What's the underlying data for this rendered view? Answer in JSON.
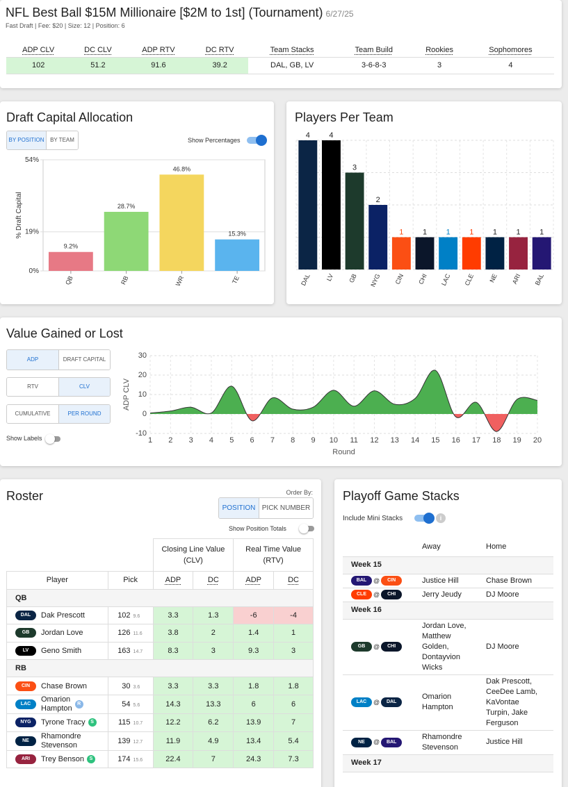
{
  "header": {
    "title": "NFL Best Ball $15M Millionaire [$2M to 1st] (Tournament)",
    "date": "6/27/25",
    "subtitle": "Fast Draft | Fee: $20 | Size: 12 | Position: 6",
    "columns": [
      "ADP CLV",
      "DC CLV",
      "ADP RTV",
      "DC RTV",
      "Team Stacks",
      "Team Build",
      "Rookies",
      "Sophomores"
    ],
    "values": [
      "102",
      "51.2",
      "91.6",
      "39.2",
      "DAL, GB, LV",
      "3-6-8-3",
      "3",
      "4"
    ]
  },
  "draft_capital": {
    "title": "Draft Capital Allocation",
    "tabs": [
      "BY POSITION",
      "BY TEAM"
    ],
    "show_percentages_label": "Show Percentages",
    "chart_data": {
      "type": "bar",
      "ylabel": "% Draft Capital",
      "yticks": [
        "54%",
        "19%",
        "0%"
      ],
      "ytick_values": [
        54,
        19,
        0
      ],
      "ylim": [
        0,
        54
      ],
      "categories": [
        "QB",
        "RB",
        "WR",
        "TE"
      ],
      "values": [
        9.2,
        28.7,
        46.8,
        15.3
      ],
      "labels": [
        "9.2%",
        "28.7%",
        "46.8%",
        "15.3%"
      ],
      "colors": [
        "#e77985",
        "#8ed876",
        "#f4d65e",
        "#5ab4ee"
      ]
    }
  },
  "players_per_team": {
    "title": "Players Per Team",
    "chart_data": {
      "type": "bar",
      "categories": [
        "DAL",
        "LV",
        "GB",
        "NYG",
        "CIN",
        "CHI",
        "LAC",
        "CLE",
        "NE",
        "ARI",
        "BAL"
      ],
      "values": [
        4,
        4,
        3,
        2,
        1,
        1,
        1,
        1,
        1,
        1,
        1
      ],
      "colors": [
        "#0b2545",
        "#000000",
        "#1d3a2c",
        "#0b2265",
        "#fb4f14",
        "#0b162a",
        "#0080c6",
        "#ff3c00",
        "#002244",
        "#97233f",
        "#241773"
      ],
      "label_colors": [
        "#222",
        "#222",
        "#222",
        "#222",
        "#fb4f14",
        "#222",
        "#0080c6",
        "#ff3c00",
        "#222",
        "#222",
        "#222"
      ],
      "ylim": [
        0,
        4
      ]
    }
  },
  "value_gained": {
    "title": "Value Gained or Lost",
    "buttons": {
      "adp": "ADP",
      "draft_capital": "DRAFT CAPITAL",
      "rtv": "RTV",
      "clv": "CLV",
      "cumulative": "CUMULATIVE",
      "per_round": "PER ROUND"
    },
    "show_labels": "Show Labels",
    "chart_data": {
      "type": "area",
      "xlabel": "Round",
      "ylabel": "ADP CLV",
      "ylim": [
        -10,
        30
      ],
      "yticks": [
        30,
        20,
        10,
        0,
        -10
      ],
      "x": [
        1,
        2,
        3,
        4,
        5,
        6,
        7,
        8,
        9,
        10,
        11,
        12,
        13,
        14,
        15,
        16,
        17,
        18,
        19,
        20
      ],
      "values": [
        0.5,
        1.5,
        3.5,
        0.5,
        14.3,
        -3.5,
        8.3,
        2.5,
        3.5,
        12.2,
        4,
        11.9,
        5,
        8,
        22.4,
        -1.5,
        6,
        -9,
        7.5,
        7
      ],
      "positive_color": "#4caf50",
      "negative_color": "#f06060"
    }
  },
  "roster": {
    "title": "Roster",
    "order_by_label": "Order By:",
    "order_buttons": [
      "POSITION",
      "PICK NUMBER"
    ],
    "show_position_totals": "Show Position Totals",
    "group_headers": [
      "Closing Line Value\n(CLV)",
      "Real Time Value\n(RTV)"
    ],
    "clv_line1": "Closing Line Value",
    "clv_line2": "(CLV)",
    "rtv_line1": "Real Time Value",
    "rtv_line2": "(RTV)",
    "columns": [
      "Player",
      "Pick",
      "ADP",
      "DC",
      "ADP",
      "DC"
    ],
    "sections": [
      {
        "name": "QB",
        "rows": [
          {
            "team": "DAL",
            "color": "#0b2545",
            "player": "Dak Prescott",
            "pick": "102",
            "round": "9.6",
            "adp_clv": "3.3",
            "dc_clv": "1.3",
            "adp_rtv": "-6",
            "dc_rtv": "-4",
            "badge": ""
          },
          {
            "team": "GB",
            "color": "#1d3a2c",
            "player": "Jordan Love",
            "pick": "126",
            "round": "11.6",
            "adp_clv": "3.8",
            "dc_clv": "2",
            "adp_rtv": "1.4",
            "dc_rtv": "1",
            "badge": ""
          },
          {
            "team": "LV",
            "color": "#000000",
            "player": "Geno Smith",
            "pick": "163",
            "round": "14.7",
            "adp_clv": "8.3",
            "dc_clv": "3",
            "adp_rtv": "9.3",
            "dc_rtv": "3",
            "badge": ""
          }
        ]
      },
      {
        "name": "RB",
        "rows": [
          {
            "team": "CIN",
            "color": "#fb4f14",
            "player": "Chase Brown",
            "pick": "30",
            "round": "3.6",
            "adp_clv": "3.3",
            "dc_clv": "3.3",
            "adp_rtv": "1.8",
            "dc_rtv": "1.8",
            "badge": ""
          },
          {
            "team": "LAC",
            "color": "#0080c6",
            "player": "Omarion Hampton",
            "player_l1": "Omarion",
            "player_l2": "Hampton",
            "pick": "54",
            "round": "5.6",
            "adp_clv": "14.3",
            "dc_clv": "13.3",
            "adp_rtv": "6",
            "dc_rtv": "6",
            "badge": "R"
          },
          {
            "team": "NYG",
            "color": "#0b2265",
            "player": "Tyrone Tracy",
            "pick": "115",
            "round": "10.7",
            "adp_clv": "12.2",
            "dc_clv": "6.2",
            "adp_rtv": "13.9",
            "dc_rtv": "7",
            "badge": "S"
          },
          {
            "team": "NE",
            "color": "#002244",
            "player": "Rhamondre Stevenson",
            "player_l1": "Rhamondre",
            "player_l2": "Stevenson",
            "pick": "139",
            "round": "12.7",
            "adp_clv": "11.9",
            "dc_clv": "4.9",
            "adp_rtv": "13.4",
            "dc_rtv": "5.4",
            "badge": ""
          },
          {
            "team": "ARI",
            "color": "#97233f",
            "player": "Trey Benson",
            "pick": "174",
            "round": "15.6",
            "adp_clv": "22.4",
            "dc_clv": "7",
            "adp_rtv": "24.3",
            "dc_rtv": "7.3",
            "badge": "S"
          }
        ]
      }
    ]
  },
  "playoff": {
    "title": "Playoff Game Stacks",
    "include_mini": "Include Mini Stacks",
    "columns": [
      "",
      "Away",
      "Home"
    ],
    "weeks": [
      {
        "name": "Week 15",
        "games": [
          {
            "away_team": "BAL",
            "away_color": "#241773",
            "home_team": "CIN",
            "home_color": "#fb4f14",
            "away": "Justice Hill",
            "home": "Chase Brown"
          },
          {
            "away_team": "CLE",
            "away_color": "#ff3c00",
            "home_team": "CHI",
            "home_color": "#0b162a",
            "away": "Jerry Jeudy",
            "home": "DJ Moore"
          }
        ]
      },
      {
        "name": "Week 16",
        "games": [
          {
            "away_team": "GB",
            "away_color": "#1d3a2c",
            "home_team": "CHI",
            "home_color": "#0b162a",
            "away": "Jordan Love,\nMatthew\nGolden,\nDontayvion\nWicks",
            "home": "DJ Moore"
          },
          {
            "away_team": "LAC",
            "away_color": "#0080c6",
            "home_team": "DAL",
            "home_color": "#0b2545",
            "away": "Omarion\nHampton",
            "home": "Dak Prescott,\nCeeDee Lamb,\nKaVontae\nTurpin, Jake\nFerguson"
          },
          {
            "away_team": "NE",
            "away_color": "#002244",
            "home_team": "BAL",
            "home_color": "#241773",
            "away": "Rhamondre\nStevenson",
            "home": "Justice Hill"
          }
        ]
      },
      {
        "name": "Week 17",
        "games": []
      }
    ]
  }
}
